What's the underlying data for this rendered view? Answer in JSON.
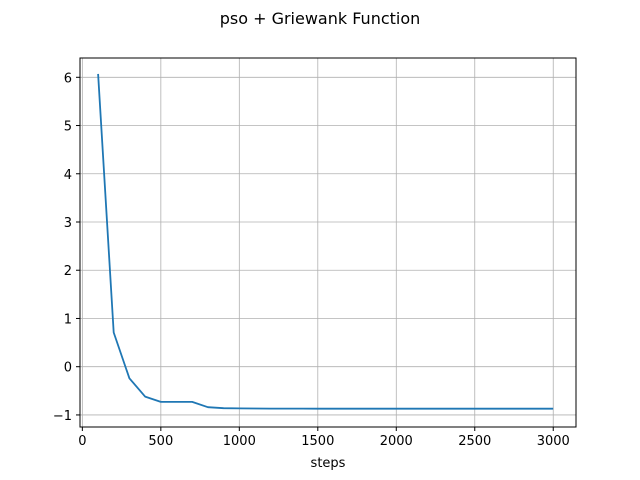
{
  "chart_data": {
    "type": "line",
    "title": "pso + Griewank Function",
    "xlabel": "steps",
    "ylabel": "",
    "xlim": [
      -15,
      3145
    ],
    "ylim": [
      -1.25,
      6.4
    ],
    "xticks": [
      0,
      500,
      1000,
      1500,
      2000,
      2500,
      3000
    ],
    "yticks": [
      -1,
      0,
      1,
      2,
      3,
      4,
      5,
      6
    ],
    "grid": true,
    "series": [
      {
        "color": "#1f77b4",
        "x": [
          100,
          200,
          300,
          400,
          500,
          600,
          700,
          800,
          900,
          1000,
          1100,
          1200,
          1300,
          1400,
          1500,
          1600,
          1700,
          1800,
          1900,
          2000,
          2100,
          2200,
          2300,
          2400,
          2500,
          2600,
          2700,
          2800,
          2900,
          3000
        ],
        "y": [
          6.07,
          0.71,
          -0.24,
          -0.62,
          -0.73,
          -0.73,
          -0.73,
          -0.84,
          -0.86,
          -0.865,
          -0.867,
          -0.868,
          -0.869,
          -0.869,
          -0.87,
          -0.87,
          -0.87,
          -0.87,
          -0.87,
          -0.87,
          -0.87,
          -0.87,
          -0.87,
          -0.87,
          -0.87,
          -0.87,
          -0.87,
          -0.87,
          -0.87,
          -0.87
        ]
      }
    ]
  }
}
